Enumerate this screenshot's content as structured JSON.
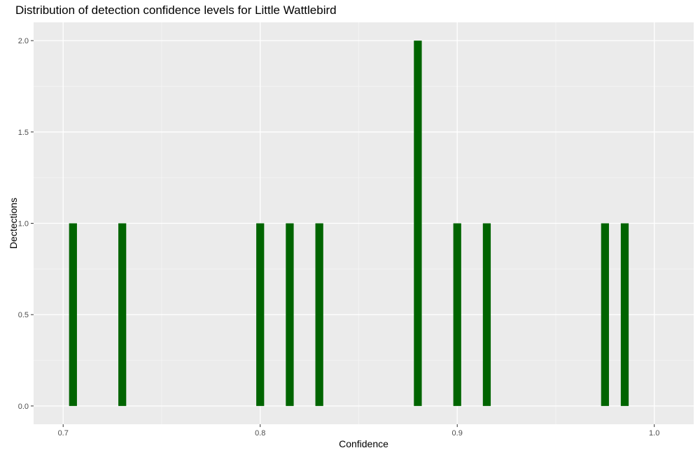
{
  "chart_data": {
    "type": "bar",
    "title": "Distribution of detection confidence levels for Little Wattlebird",
    "xlabel": "Confidence",
    "ylabel": "Dectections",
    "xlim": [
      0.685,
      1.02
    ],
    "ylim": [
      -0.1,
      2.1
    ],
    "x_ticks": [
      "0.7",
      "0.8",
      "0.9",
      "1.0"
    ],
    "y_ticks": [
      "0.0",
      "0.5",
      "1.0",
      "1.5",
      "2.0"
    ],
    "bin_width": 0.004,
    "grid": true,
    "legend": "none",
    "bars": [
      {
        "x": 0.705,
        "count": 1
      },
      {
        "x": 0.73,
        "count": 1
      },
      {
        "x": 0.8,
        "count": 1
      },
      {
        "x": 0.815,
        "count": 1
      },
      {
        "x": 0.83,
        "count": 1
      },
      {
        "x": 0.88,
        "count": 2
      },
      {
        "x": 0.9,
        "count": 1
      },
      {
        "x": 0.915,
        "count": 1
      },
      {
        "x": 0.975,
        "count": 1
      },
      {
        "x": 0.985,
        "count": 1
      }
    ],
    "colors": {
      "bar": "#006400",
      "panel": "#ebebeb",
      "grid_major": "#ffffff",
      "grid_minor": "#f5f5f5",
      "tick_text": "#4d4d4d"
    }
  }
}
